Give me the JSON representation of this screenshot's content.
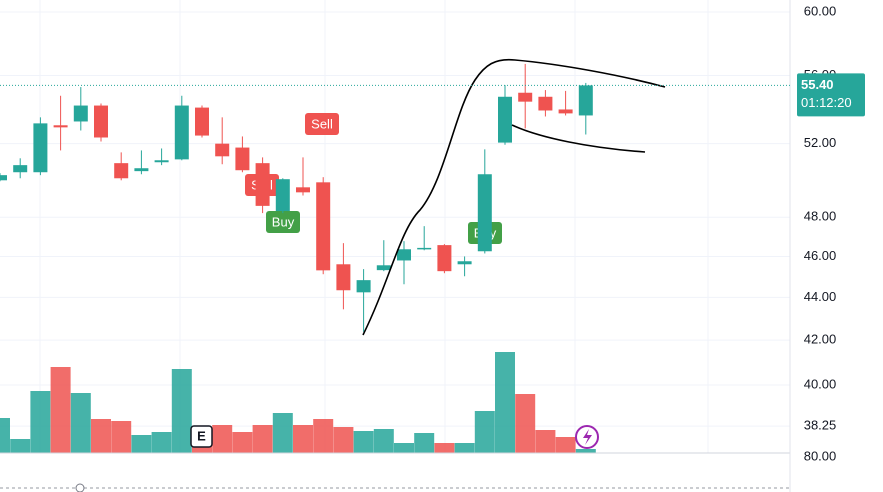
{
  "chart_data": {
    "type": "candlestick",
    "log_scale": true,
    "grid": true,
    "up_color": "#26a69a",
    "down_color": "#ef5350",
    "open": [
      49.97,
      50.41,
      50.41,
      53.05,
      53.27,
      54.2,
      50.91,
      50.47,
      50.96,
      51.12,
      54.08,
      52.0,
      51.78,
      50.91,
      48.33,
      49.59,
      49.86,
      45.61,
      44.24,
      45.32,
      45.8,
      46.4,
      46.57,
      45.61,
      46.26,
      52.06,
      54.96,
      54.72,
      53.97,
      53.62
    ],
    "high": [
      50.36,
      51.18,
      53.51,
      54.78,
      55.3,
      54.32,
      51.51,
      51.62,
      51.73,
      54.78,
      54.2,
      53.51,
      52.41,
      51.23,
      50.08,
      51.23,
      50.14,
      46.67,
      45.37,
      46.82,
      46.77,
      47.54,
      46.62,
      46.0,
      51.68,
      55.42,
      56.71,
      55.12,
      55.07,
      55.55
    ],
    "low": [
      49.92,
      50.08,
      50.25,
      51.62,
      52.75,
      52.12,
      49.97,
      50.3,
      50.8,
      51.07,
      52.35,
      50.85,
      50.41,
      48.22,
      48.22,
      49.15,
      45.12,
      43.43,
      42.38,
      45.27,
      44.63,
      46.31,
      45.17,
      45.02,
      46.15,
      51.94,
      52.87,
      53.56,
      53.62,
      52.52
    ],
    "close": [
      50.25,
      50.8,
      53.16,
      52.93,
      54.2,
      52.35,
      50.08,
      50.63,
      51.07,
      54.2,
      52.46,
      51.29,
      50.52,
      48.6,
      50.03,
      49.32,
      45.31,
      44.34,
      44.83,
      45.56,
      46.36,
      46.43,
      45.27,
      45.76,
      50.3,
      54.72,
      54.43,
      53.91,
      53.74,
      55.4
    ],
    "volume": [
      35,
      14,
      62,
      86,
      60,
      34,
      32,
      18,
      21,
      84,
      26,
      28,
      21,
      28,
      40,
      28,
      34,
      26,
      22,
      24,
      10,
      20,
      10,
      10,
      42,
      101,
      59,
      23,
      16,
      4
    ],
    "volume_ylim": [
      0,
      120
    ],
    "ylim": [
      37.15,
      60.79
    ],
    "yticks": [
      {
        "value": 60,
        "label": "60.00"
      },
      {
        "value": 56,
        "label": "56.00"
      },
      {
        "value": 52,
        "label": "52.00"
      },
      {
        "value": 48,
        "label": "48.00"
      },
      {
        "value": 46,
        "label": "46.00"
      },
      {
        "value": 44,
        "label": "44.00"
      },
      {
        "value": 42,
        "label": "42.00"
      },
      {
        "value": 40,
        "label": "40.00"
      },
      {
        "value": 38.25,
        "label": "38.25"
      }
    ],
    "last_price": {
      "value": 55.4,
      "label": "55.40"
    },
    "countdown": "01:12:20",
    "signals": [
      "Sell",
      "Sell",
      "Buy",
      "Buy"
    ],
    "earnings_badge": "E",
    "lower_pane_label": "80.00"
  }
}
